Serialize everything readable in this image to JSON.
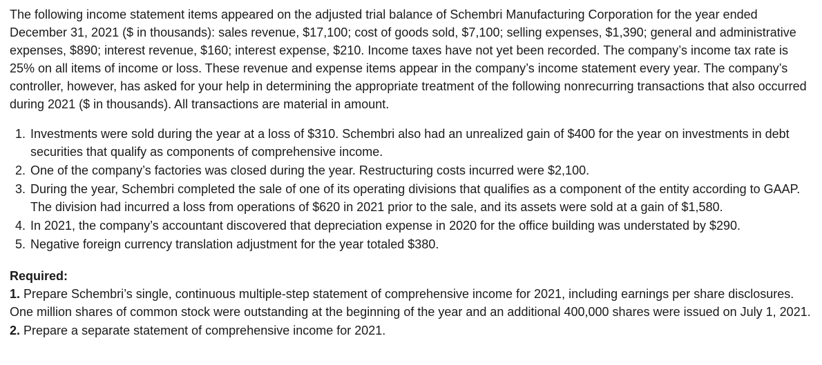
{
  "intro": "The following income statement items appeared on the adjusted trial balance of Schembri Manufacturing Corporation for the year ended December 31, 2021 ($ in thousands): sales revenue, $17,100; cost of goods sold, $7,100; selling expenses, $1,390; general and administrative expenses, $890; interest revenue, $160; interest expense, $210. Income taxes have not yet been recorded. The company’s income tax rate is 25% on all items of income or loss. These revenue and expense items appear in the company’s income statement every year. The company’s controller, however, has asked for your help in determining the appropriate treatment of the following nonrecurring transactions that also occurred during 2021 ($ in thousands). All transactions are material in amount.",
  "items": {
    "i1": "Investments were sold during the year at a loss of $310. Schembri also had an unrealized gain of $400 for the year on investments in debt securities that qualify as components of comprehensive income.",
    "i2": "One of the company’s factories was closed during the year. Restructuring costs incurred were $2,100.",
    "i3": "During the year, Schembri completed the sale of one of its operating divisions that qualifies as a component of the entity according to GAAP. The division had incurred a loss from operations of $620 in 2021 prior to the sale, and its assets were sold at a gain of $1,580.",
    "i4": "In 2021, the company’s accountant discovered that depreciation expense in 2020 for the office building was understated by $290.",
    "i5": "Negative foreign currency translation adjustment for the year totaled $380."
  },
  "required": {
    "label": "Required:",
    "r1_num": "1.",
    "r1_text": " Prepare Schembri’s single, continuous multiple-step statement of comprehensive income for 2021, including earnings per share disclosures. One million shares of common stock were outstanding at the beginning of the year and an additional 400,000 shares were issued on July 1, 2021.",
    "r2_num": "2.",
    "r2_text": " Prepare a separate statement of comprehensive income for 2021."
  }
}
